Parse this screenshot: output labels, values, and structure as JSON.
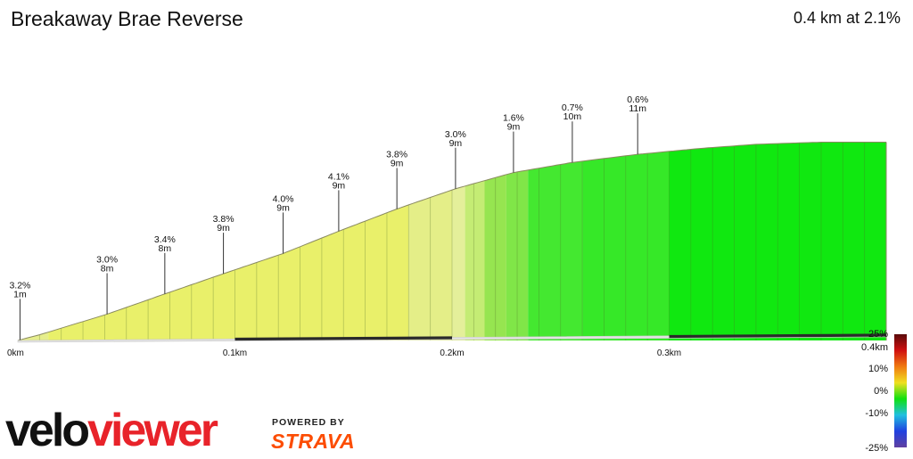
{
  "header": {
    "title": "Breakaway Brae Reverse",
    "summary": "0.4 km at 2.1%"
  },
  "chart_data": {
    "type": "area",
    "title": "Breakaway Brae Reverse",
    "xlabel": "",
    "ylabel": "",
    "x_unit": "km",
    "xlim": [
      0,
      0.4
    ],
    "x_ticks": [
      {
        "value": 0,
        "label": "0km"
      },
      {
        "value": 0.1,
        "label": "0.1km"
      },
      {
        "value": 0.2,
        "label": "0.2km"
      },
      {
        "value": 0.3,
        "label": "0.3km"
      }
    ],
    "elevation_profile": {
      "x": [
        0.0,
        0.0106,
        0.0411,
        0.0677,
        0.0947,
        0.1222,
        0.1478,
        0.1746,
        0.2016,
        0.2283,
        0.2554,
        0.2855,
        0.315,
        0.3407,
        0.3696,
        0.4
      ],
      "y": [
        0.0,
        0.3,
        1.3,
        2.3,
        3.3,
        4.3,
        5.4,
        6.5,
        7.5,
        8.3,
        8.8,
        9.2,
        9.5,
        9.7,
        9.8,
        9.8
      ]
    },
    "gradient_segments": [
      {
        "from": 0.0,
        "to": 0.014,
        "grade": 3.2,
        "color": "#e6ee8c"
      },
      {
        "from": 0.014,
        "to": 0.18,
        "grade": 3.8,
        "color": "#e9f06a"
      },
      {
        "from": 0.18,
        "to": 0.2,
        "grade": 3.0,
        "color": "#e4ee88"
      },
      {
        "from": 0.2,
        "to": 0.206,
        "grade": 2.6,
        "color": "#e4ef9a"
      },
      {
        "from": 0.206,
        "to": 0.215,
        "grade": 2.0,
        "color": "#c4ec74"
      },
      {
        "from": 0.215,
        "to": 0.225,
        "grade": 1.6,
        "color": "#96e550"
      },
      {
        "from": 0.225,
        "to": 0.235,
        "grade": 1.2,
        "color": "#80e648"
      },
      {
        "from": 0.235,
        "to": 0.26,
        "grade": 0.8,
        "color": "#44e830"
      },
      {
        "from": 0.26,
        "to": 0.3,
        "grade": 0.6,
        "color": "#36e828"
      },
      {
        "from": 0.3,
        "to": 0.4,
        "grade": 0.3,
        "color": "#10e810"
      }
    ],
    "annotations": [
      {
        "x": 0.001,
        "grade": "3.2%",
        "length": "1m"
      },
      {
        "x": 0.0411,
        "grade": "3.0%",
        "length": "8m"
      },
      {
        "x": 0.0677,
        "grade": "3.4%",
        "length": "8m"
      },
      {
        "x": 0.0947,
        "grade": "3.8%",
        "length": "9m"
      },
      {
        "x": 0.1222,
        "grade": "4.0%",
        "length": "9m"
      },
      {
        "x": 0.1478,
        "grade": "4.1%",
        "length": "9m"
      },
      {
        "x": 0.1746,
        "grade": "3.8%",
        "length": "9m"
      },
      {
        "x": 0.2016,
        "grade": "3.0%",
        "length": "9m"
      },
      {
        "x": 0.2283,
        "grade": "1.6%",
        "length": "9m"
      },
      {
        "x": 0.2554,
        "grade": "0.7%",
        "length": "10m"
      },
      {
        "x": 0.2855,
        "grade": "0.6%",
        "length": "11m"
      }
    ],
    "distance_bar_dark": [
      [
        0.1,
        0.2
      ],
      [
        0.3,
        0.4
      ]
    ],
    "color_scale": {
      "labels": [
        "25%",
        "0.4km",
        "10%",
        "0%",
        "-10%",
        "-25%"
      ],
      "stops": [
        "#5a0a0a",
        "#d01010",
        "#f07a10",
        "#f0e020",
        "#10e010",
        "#20c0e0",
        "#2040e0",
        "#6040a0"
      ]
    }
  },
  "branding": {
    "logo_text_dark": "velo",
    "logo_text_red": "viewer",
    "powered_by": "POWERED BY",
    "partner": "STRAVA",
    "colors": {
      "logo_dark": "#111111",
      "logo_red": "#e8232a",
      "strava": "#fc4c02"
    }
  }
}
